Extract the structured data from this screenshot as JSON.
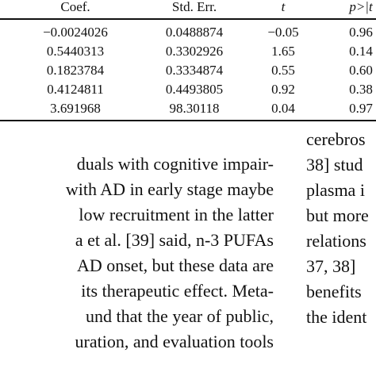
{
  "table": {
    "header": [
      "Coef.",
      "Std. Err.",
      "t",
      "p>|t"
    ],
    "rows": [
      [
        "−0.0024026",
        "0.0488874",
        "−0.05",
        "0.96"
      ],
      [
        "0.5440313",
        "0.3302926",
        "1.65",
        "0.14"
      ],
      [
        "0.1823784",
        "0.3334874",
        "0.55",
        "0.60"
      ],
      [
        "0.4124811",
        "0.4493805",
        "0.92",
        "0.38"
      ],
      [
        "3.691968",
        "98.30118",
        "0.04",
        "0.97"
      ]
    ]
  },
  "left_column": [
    "duals with cognitive impair-",
    "with AD in early stage maybe",
    "low recruitment in the latter",
    "a et al. [39] said, n-3 PUFAs",
    "AD onset, but these data are",
    "its therapeutic effect. Meta-",
    "und that the year of public,",
    "uration, and evaluation tools"
  ],
  "right_column": [
    "cerebros",
    "38] stud",
    "plasma i",
    "but more",
    "relations",
    "37, 38]",
    "benefits",
    "the ident"
  ]
}
